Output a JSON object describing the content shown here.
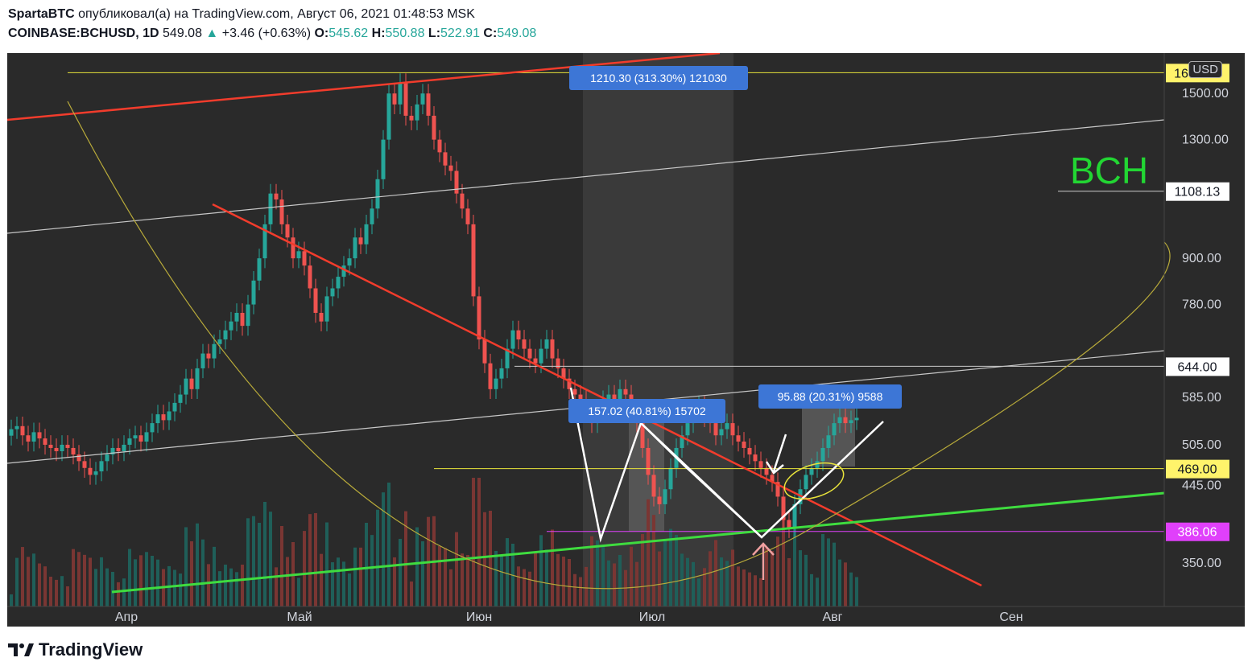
{
  "header": {
    "author": "SpartaBTC",
    "published": "опубликовал(а) на TradingView.com, Август 06, 2021 01:48:53 MSK",
    "symbol": "COINBASE:BCHUSD, 1D",
    "last": "549.08",
    "change_arrow": "▲",
    "change": "+3.46 (+0.63%)",
    "o_label": "O:",
    "o_val": "545.62",
    "h_label": "H:",
    "h_val": "550.88",
    "l_label": "L:",
    "l_val": "522.91",
    "c_label": "C:",
    "c_val": "549.08"
  },
  "footer": {
    "brand": "TradingView",
    "logo_icon": "tradingview-logo-icon"
  },
  "currency_badge": "USD",
  "annotation_text": "BCH",
  "colors": {
    "background": "#2a2a2a",
    "up": "#26a69a",
    "down": "#ef5350",
    "trend_red": "#f23c2c",
    "trend_green": "#3fdc3f",
    "level_yellow": "#e8e33b",
    "magenta": "#e040fb",
    "measure_blue": "#3d76d6"
  },
  "chart_data": {
    "type": "candlestick",
    "symbol": "COINBASE:BCHUSD",
    "interval": "1D",
    "y_scale": "log",
    "ylim": [
      320,
      1700
    ],
    "x_ticks": [
      "Апр",
      "Май",
      "Июн",
      "Июл",
      "Авг",
      "Сен"
    ],
    "y_ticks": [
      {
        "value": 350,
        "label": "350.00"
      },
      {
        "value": 445,
        "label": "445.00"
      },
      {
        "value": 505,
        "label": "505.00"
      },
      {
        "value": 585,
        "label": "585.00"
      },
      {
        "value": 780,
        "label": "780.00"
      },
      {
        "value": 900,
        "label": "900.00"
      },
      {
        "value": 1300,
        "label": "1300.00"
      },
      {
        "value": 1500,
        "label": "1500.00"
      }
    ],
    "price_labels": [
      {
        "value": 1600,
        "label": "1600.00",
        "style": "yellow"
      },
      {
        "value": 1108.13,
        "label": "1108.13",
        "style": "white"
      },
      {
        "value": 644,
        "label": "644.00",
        "style": "white"
      },
      {
        "value": 469,
        "label": "469.00",
        "style": "yellow"
      },
      {
        "value": 386.06,
        "label": "386.06",
        "style": "magenta"
      }
    ],
    "measurements": [
      {
        "label": "1210.30 (313.30%) 121030"
      },
      {
        "label": "157.02 (40.81%) 15702"
      },
      {
        "label": "95.88 (20.31%) 9588"
      }
    ],
    "candles_close": [
      530,
      535,
      520,
      510,
      525,
      515,
      505,
      500,
      495,
      505,
      500,
      490,
      480,
      470,
      460,
      465,
      480,
      490,
      500,
      495,
      505,
      515,
      520,
      510,
      525,
      540,
      555,
      545,
      560,
      575,
      590,
      620,
      600,
      640,
      670,
      660,
      690,
      700,
      720,
      740,
      760,
      730,
      780,
      840,
      900,
      1000,
      1100,
      1080,
      1000,
      960,
      900,
      920,
      880,
      820,
      760,
      740,
      800,
      820,
      850,
      880,
      900,
      960,
      940,
      1000,
      1050,
      1150,
      1300,
      1500,
      1450,
      1550,
      1400,
      1380,
      1450,
      1500,
      1400,
      1300,
      1250,
      1200,
      1180,
      1100,
      1050,
      1000,
      800,
      700,
      650,
      600,
      620,
      640,
      680,
      720,
      700,
      680,
      660,
      650,
      680,
      700,
      660,
      640,
      620,
      600,
      590,
      580,
      560,
      540,
      560,
      580,
      590,
      580,
      600,
      590,
      560,
      540,
      500,
      460,
      430,
      420,
      440,
      470,
      500,
      520,
      540,
      560,
      570,
      550,
      540,
      520,
      530,
      540,
      520,
      510,
      500,
      490,
      480,
      470,
      460,
      450,
      430,
      400,
      390,
      420,
      440,
      460,
      470,
      480,
      500,
      520,
      540,
      550,
      540,
      545,
      549
    ]
  }
}
